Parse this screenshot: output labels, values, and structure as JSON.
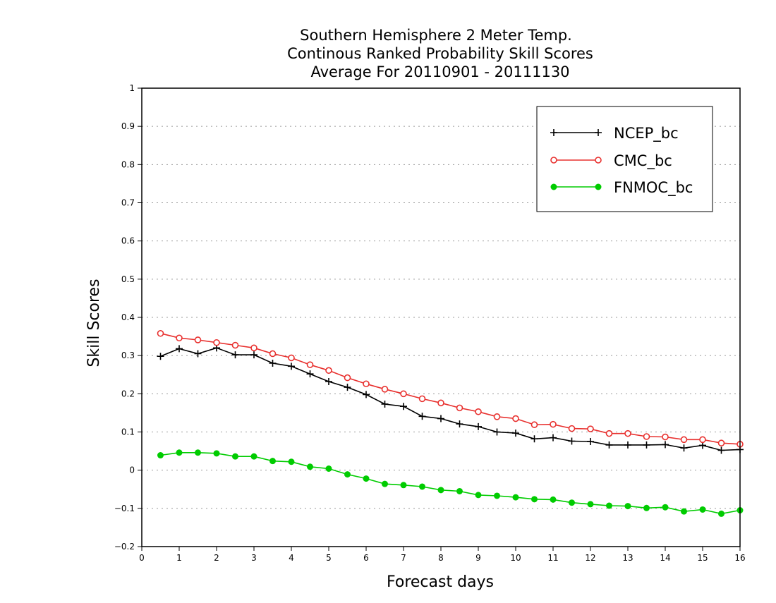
{
  "chart_data": {
    "type": "line",
    "title_lines": [
      "Southern Hemisphere 2 Meter Temp.",
      "Continous Ranked Probability Skill Scores",
      "Average For 20110901 - 20111130"
    ],
    "xlabel": "Forecast days",
    "ylabel": "Skill Scores",
    "xlim": [
      0,
      16
    ],
    "ylim": [
      -0.2,
      1
    ],
    "xticks": [
      "0",
      "1",
      "2",
      "3",
      "4",
      "5",
      "6",
      "7",
      "8",
      "9",
      "10",
      "11",
      "12",
      "13",
      "14",
      "15",
      "16"
    ],
    "yticks": [
      "−0.2",
      "−0.1",
      "0",
      "0.1",
      "0.2",
      "0.3",
      "0.4",
      "0.5",
      "0.6",
      "0.7",
      "0.8",
      "0.9",
      "1"
    ],
    "grid": "horizontal dotted",
    "legend_position": "top-right",
    "x": [
      0.5,
      1,
      1.5,
      2,
      2.5,
      3,
      3.5,
      4,
      4.5,
      5,
      5.5,
      6,
      6.5,
      7,
      7.5,
      8,
      8.5,
      9,
      9.5,
      10,
      10.5,
      11,
      11.5,
      12,
      12.5,
      13,
      13.5,
      14,
      14.5,
      15,
      15.5,
      16
    ],
    "series": [
      {
        "name": "NCEP_bc",
        "color": "#000000",
        "marker": "plus",
        "values": [
          0.298,
          0.318,
          0.305,
          0.32,
          0.302,
          0.302,
          0.28,
          0.272,
          0.252,
          0.232,
          0.217,
          0.198,
          0.173,
          0.167,
          0.141,
          0.135,
          0.121,
          0.114,
          0.1,
          0.097,
          0.082,
          0.085,
          0.076,
          0.075,
          0.066,
          0.066,
          0.066,
          0.067,
          0.058,
          0.065,
          0.052,
          0.054
        ]
      },
      {
        "name": "CMC_bc",
        "color": "#e8302e",
        "marker": "open-circle",
        "values": [
          0.358,
          0.346,
          0.341,
          0.334,
          0.327,
          0.32,
          0.305,
          0.294,
          0.276,
          0.261,
          0.242,
          0.226,
          0.212,
          0.2,
          0.187,
          0.176,
          0.163,
          0.153,
          0.14,
          0.135,
          0.119,
          0.12,
          0.109,
          0.108,
          0.096,
          0.096,
          0.088,
          0.087,
          0.08,
          0.08,
          0.071,
          0.068
        ]
      },
      {
        "name": "FNMOC_bc",
        "color": "#00cc00",
        "marker": "filled-circle",
        "values": [
          0.039,
          0.046,
          0.046,
          0.044,
          0.036,
          0.036,
          0.024,
          0.022,
          0.009,
          0.004,
          -0.011,
          -0.022,
          -0.036,
          -0.039,
          -0.043,
          -0.052,
          -0.055,
          -0.065,
          -0.067,
          -0.071,
          -0.076,
          -0.077,
          -0.085,
          -0.089,
          -0.093,
          -0.094,
          -0.099,
          -0.097,
          -0.108,
          -0.103,
          -0.114,
          -0.105
        ]
      }
    ]
  }
}
